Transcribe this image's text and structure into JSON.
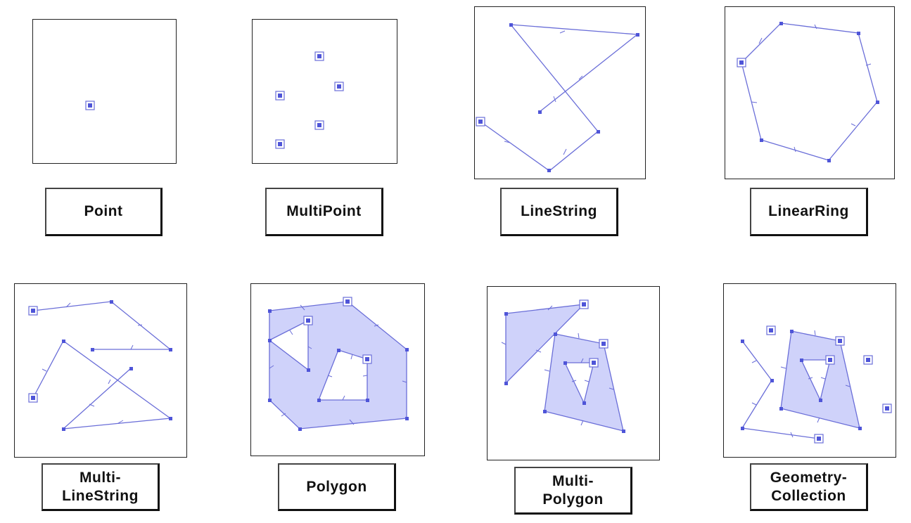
{
  "colors": {
    "line": "#6a6ed8",
    "vertex": "#4f55d8",
    "fill": "#cfd2fa",
    "border": "#222222"
  },
  "panels": [
    {
      "id": "point",
      "label": "Point"
    },
    {
      "id": "multipoint",
      "label": "MultiPoint"
    },
    {
      "id": "linestring",
      "label": "LineString"
    },
    {
      "id": "linearring",
      "label": "LinearRing"
    },
    {
      "id": "multilinestring",
      "label": "Multi-\nLineString"
    },
    {
      "id": "polygon",
      "label": "Polygon"
    },
    {
      "id": "multipolygon",
      "label": "Multi-\nPolygon"
    },
    {
      "id": "geometrycollection",
      "label": "Geometry-\nCollection"
    }
  ]
}
